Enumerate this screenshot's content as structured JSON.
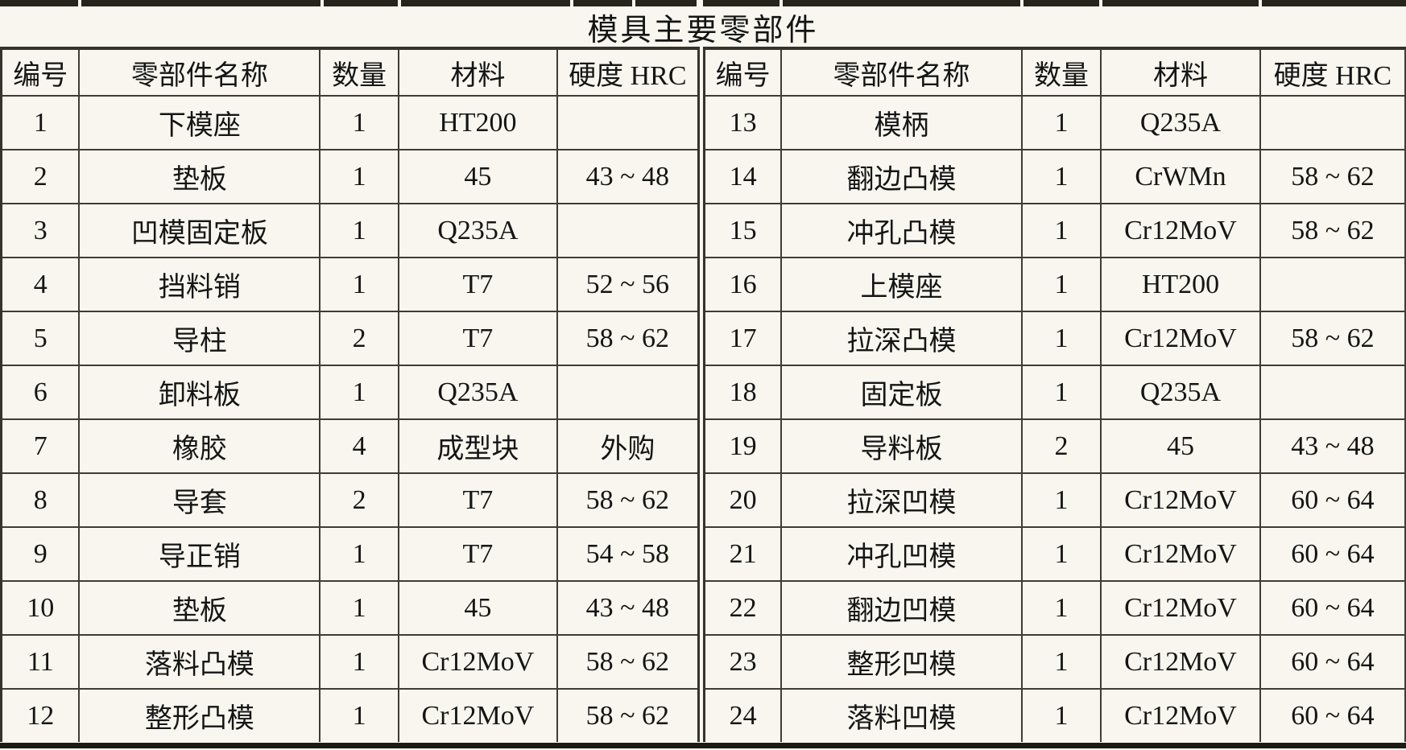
{
  "title": "模具主要零部件",
  "columns": [
    "编号",
    "零部件名称",
    "数量",
    "材料",
    "硬度 HRC"
  ],
  "left_rows": [
    {
      "no": "1",
      "name": "下模座",
      "qty": "1",
      "material": "HT200",
      "hardness": ""
    },
    {
      "no": "2",
      "name": "垫板",
      "qty": "1",
      "material": "45",
      "hardness": "43 ~ 48"
    },
    {
      "no": "3",
      "name": "凹模固定板",
      "qty": "1",
      "material": "Q235A",
      "hardness": ""
    },
    {
      "no": "4",
      "name": "挡料销",
      "qty": "1",
      "material": "T7",
      "hardness": "52 ~ 56"
    },
    {
      "no": "5",
      "name": "导柱",
      "qty": "2",
      "material": "T7",
      "hardness": "58 ~ 62"
    },
    {
      "no": "6",
      "name": "卸料板",
      "qty": "1",
      "material": "Q235A",
      "hardness": ""
    },
    {
      "no": "7",
      "name": "橡胶",
      "qty": "4",
      "material": "成型块",
      "hardness": "外购"
    },
    {
      "no": "8",
      "name": "导套",
      "qty": "2",
      "material": "T7",
      "hardness": "58 ~ 62"
    },
    {
      "no": "9",
      "name": "导正销",
      "qty": "1",
      "material": "T7",
      "hardness": "54 ~ 58"
    },
    {
      "no": "10",
      "name": "垫板",
      "qty": "1",
      "material": "45",
      "hardness": "43 ~ 48"
    },
    {
      "no": "11",
      "name": "落料凸模",
      "qty": "1",
      "material": "Cr12MoV",
      "hardness": "58 ~ 62"
    },
    {
      "no": "12",
      "name": "整形凸模",
      "qty": "1",
      "material": "Cr12MoV",
      "hardness": "58 ~ 62"
    }
  ],
  "right_rows": [
    {
      "no": "13",
      "name": "模柄",
      "qty": "1",
      "material": "Q235A",
      "hardness": ""
    },
    {
      "no": "14",
      "name": "翻边凸模",
      "qty": "1",
      "material": "CrWMn",
      "hardness": "58 ~ 62"
    },
    {
      "no": "15",
      "name": "冲孔凸模",
      "qty": "1",
      "material": "Cr12MoV",
      "hardness": "58 ~ 62"
    },
    {
      "no": "16",
      "name": "上模座",
      "qty": "1",
      "material": "HT200",
      "hardness": ""
    },
    {
      "no": "17",
      "name": "拉深凸模",
      "qty": "1",
      "material": "Cr12MoV",
      "hardness": "58 ~ 62"
    },
    {
      "no": "18",
      "name": "固定板",
      "qty": "1",
      "material": "Q235A",
      "hardness": ""
    },
    {
      "no": "19",
      "name": "导料板",
      "qty": "2",
      "material": "45",
      "hardness": "43 ~ 48"
    },
    {
      "no": "20",
      "name": "拉深凹模",
      "qty": "1",
      "material": "Cr12MoV",
      "hardness": "60 ~ 64"
    },
    {
      "no": "21",
      "name": "冲孔凹模",
      "qty": "1",
      "material": "Cr12MoV",
      "hardness": "60 ~ 64"
    },
    {
      "no": "22",
      "name": "翻边凹模",
      "qty": "1",
      "material": "Cr12MoV",
      "hardness": "60 ~ 64"
    },
    {
      "no": "23",
      "name": "整形凹模",
      "qty": "1",
      "material": "Cr12MoV",
      "hardness": "60 ~ 64"
    },
    {
      "no": "24",
      "name": "落料凹模",
      "qty": "1",
      "material": "Cr12MoV",
      "hardness": "60 ~ 64"
    }
  ],
  "colors": {
    "page_background": "#f8f6ef",
    "grid_line": "#3e3c33",
    "edge_bar": "#26241b",
    "text": "#151515"
  }
}
